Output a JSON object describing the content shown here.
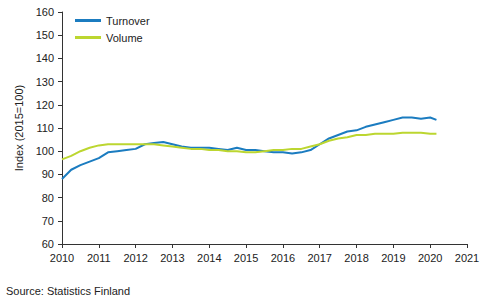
{
  "chart_data": {
    "type": "line",
    "y_label": "Index (2015=100)",
    "source": "Source: Statistics Finland",
    "x": [
      2010.0,
      2010.25,
      2010.5,
      2010.75,
      2011.0,
      2011.25,
      2011.5,
      2011.75,
      2012.0,
      2012.25,
      2012.5,
      2012.75,
      2013.0,
      2013.25,
      2013.5,
      2013.75,
      2014.0,
      2014.25,
      2014.5,
      2014.75,
      2015.0,
      2015.25,
      2015.5,
      2015.75,
      2016.0,
      2016.25,
      2016.5,
      2016.75,
      2017.0,
      2017.25,
      2017.5,
      2017.75,
      2018.0,
      2018.25,
      2018.5,
      2018.75,
      2019.0,
      2019.25,
      2019.5,
      2019.75,
      2020.0,
      2020.17
    ],
    "series": [
      {
        "name": "Turnover",
        "color": "#1b7cc0",
        "values": [
          88,
          92,
          94,
          95.5,
          97,
          99.5,
          100,
          100.5,
          101,
          103,
          103.5,
          104,
          103,
          102,
          101.5,
          101.5,
          101.5,
          101,
          100.5,
          101.5,
          100.5,
          100.5,
          100,
          99.5,
          99.5,
          99,
          99.5,
          100.5,
          103,
          105.5,
          107,
          108.5,
          109,
          110.5,
          111.5,
          112.5,
          113.5,
          114.5,
          114.5,
          114,
          114.5,
          113.5
        ]
      },
      {
        "name": "Volume",
        "color": "#bcd630",
        "values": [
          96.5,
          98,
          100,
          101.5,
          102.5,
          103,
          103,
          103,
          103,
          103,
          103,
          102.5,
          102,
          101.5,
          101,
          101,
          100.5,
          100.5,
          100,
          100,
          99.5,
          99.5,
          100,
          100.5,
          100.5,
          101,
          101,
          102,
          103,
          104.5,
          105.5,
          106,
          107,
          107,
          107.5,
          107.5,
          107.5,
          108,
          108,
          108,
          107.5,
          107.5
        ]
      }
    ],
    "xlim": [
      2010,
      2021
    ],
    "xticks": [
      2010,
      2011,
      2012,
      2013,
      2014,
      2015,
      2016,
      2017,
      2018,
      2019,
      2020,
      2021
    ],
    "ylim": [
      60,
      160
    ],
    "yticks": [
      60,
      70,
      80,
      90,
      100,
      110,
      120,
      130,
      140,
      150,
      160
    ],
    "grid": false,
    "legend": "upper left"
  }
}
